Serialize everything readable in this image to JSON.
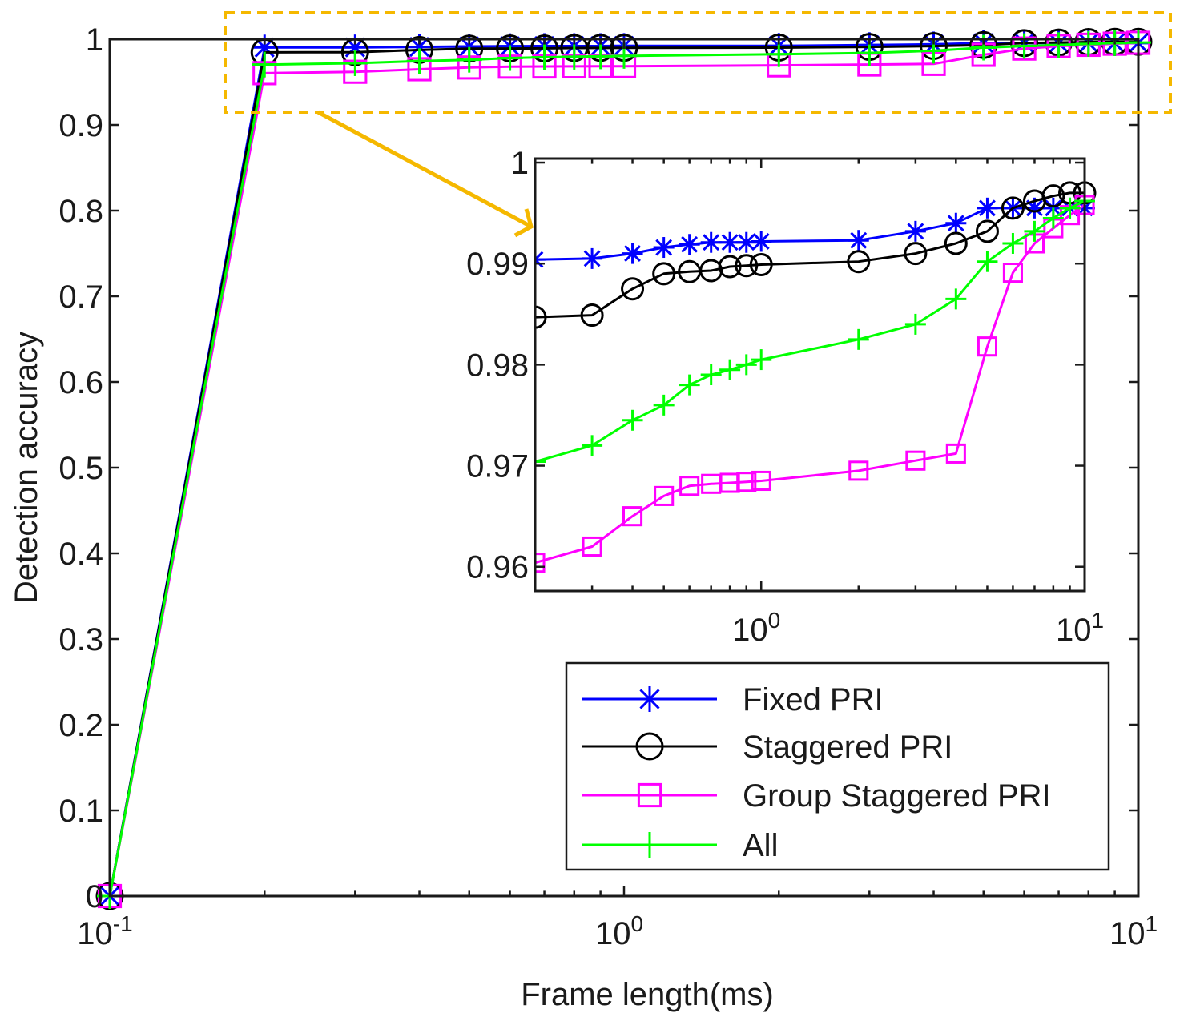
{
  "chart_data": [
    {
      "type": "line",
      "name": "main",
      "xscale": "log",
      "xlabel": "Frame length(ms)",
      "ylabel": "Detection accuracy",
      "xlim": [
        0.1,
        10
      ],
      "ylim": [
        0,
        1.0
      ],
      "yticks": [
        0,
        0.1,
        0.2,
        0.3,
        0.4,
        0.5,
        0.6,
        0.7,
        0.8,
        0.9,
        1
      ],
      "ytick_labels": [
        "0",
        "0.1",
        "0.2",
        "0.3",
        "0.4",
        "0.5",
        "0.6",
        "0.7",
        "0.8",
        "0.9",
        "1"
      ],
      "xticks": [
        {
          "base": "10",
          "exp": "-1"
        },
        {
          "base": "10",
          "exp": "0"
        },
        {
          "base": "10",
          "exp": "1"
        }
      ],
      "x": [
        0.1,
        0.2,
        0.3,
        0.4,
        0.5,
        0.6,
        0.7,
        0.8,
        0.9,
        1,
        2,
        3,
        4,
        5,
        6,
        7,
        8,
        9,
        10
      ],
      "series": [
        {
          "name": "Fixed PRI",
          "color": "#0000ff",
          "marker": "asterisk",
          "values": [
            0,
            0.9904,
            0.9905,
            0.991,
            0.9916,
            0.9919,
            0.9921,
            0.9921,
            0.9921,
            0.9922,
            0.9923,
            0.9932,
            0.994,
            0.9955,
            0.9955,
            0.9955,
            0.9955,
            0.9955,
            0.9955
          ]
        },
        {
          "name": "Staggered PRI",
          "color": "#000000",
          "marker": "circle",
          "values": [
            0,
            0.9847,
            0.9849,
            0.9875,
            0.989,
            0.9892,
            0.9893,
            0.9897,
            0.9898,
            0.9899,
            0.9902,
            0.991,
            0.992,
            0.9932,
            0.9955,
            0.9962,
            0.9967,
            0.997,
            0.997
          ]
        },
        {
          "name": "Group Staggered PRI",
          "color": "#ff00ff",
          "marker": "square",
          "values": [
            0,
            0.9604,
            0.962,
            0.965,
            0.967,
            0.968,
            0.9682,
            0.9683,
            0.9684,
            0.9685,
            0.9695,
            0.9705,
            0.9712,
            0.9818,
            0.9891,
            0.992,
            0.9935,
            0.9948,
            0.9958
          ]
        },
        {
          "name": "All",
          "color": "#00ff00",
          "marker": "plus",
          "values": [
            0,
            0.9704,
            0.972,
            0.9745,
            0.976,
            0.978,
            0.979,
            0.9795,
            0.98,
            0.9805,
            0.9825,
            0.984,
            0.9865,
            0.9902,
            0.992,
            0.9932,
            0.9945,
            0.9955,
            0.9962
          ]
        }
      ],
      "legend": {
        "location": "bottom-right",
        "entries": [
          "Fixed PRI",
          "Staggered PRI",
          "Group Staggered PRI",
          "All"
        ]
      },
      "annotation": "dashed orange box around the top of the curves, zoomed into the inset with an arrow"
    },
    {
      "type": "line",
      "name": "inset",
      "xscale": "log",
      "xlim": [
        0.2,
        10
      ],
      "ylim": [
        0.9576,
        1.0004
      ],
      "yticks": [
        0.96,
        0.97,
        0.98,
        0.99,
        1
      ],
      "ytick_labels": [
        "0.96",
        "0.97",
        "0.98",
        "0.99",
        "1"
      ],
      "xticks": [
        {
          "base": "10",
          "exp": "0"
        },
        {
          "base": "10",
          "exp": "1"
        }
      ]
    }
  ],
  "colors": {
    "highlight": "#f5b800",
    "axes": "#1a1a1a"
  }
}
